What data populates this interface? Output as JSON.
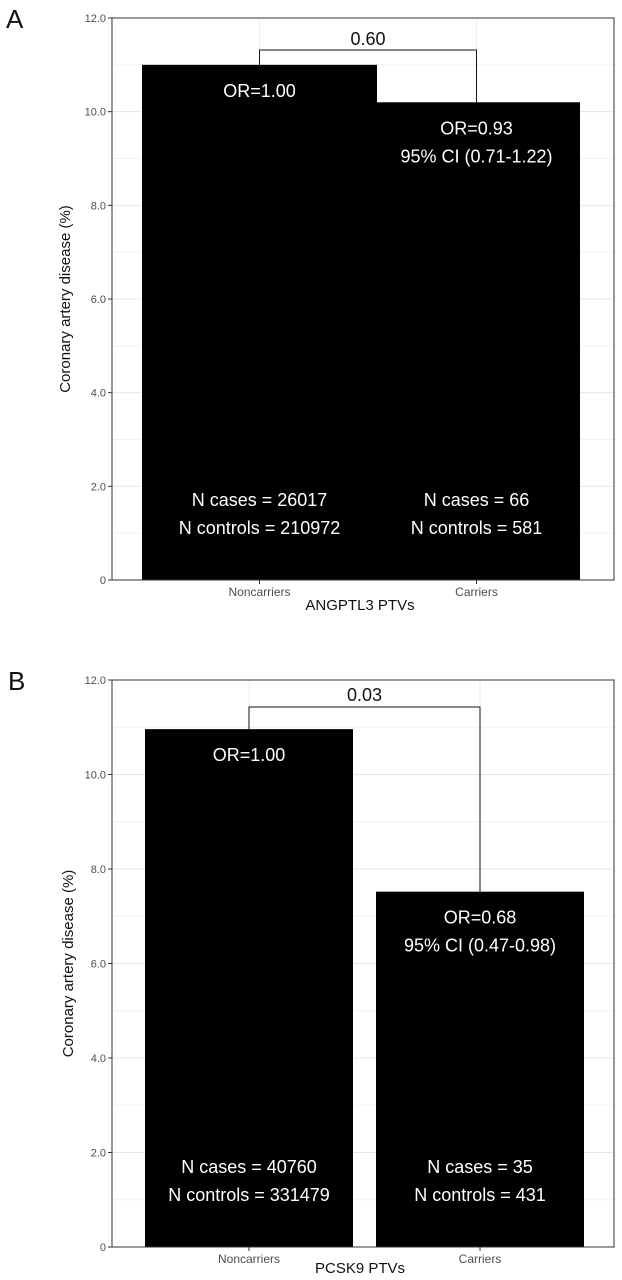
{
  "chart_data": [
    {
      "panel": "A",
      "type": "bar",
      "xlabel": "ANGPTL3 PTVs",
      "ylabel": "Coronary artery disease (%)",
      "ylim": [
        0,
        12
      ],
      "yticks": [
        "0",
        "2.0",
        "4.0",
        "6.0",
        "8.0",
        "10.0",
        "12.0"
      ],
      "grid": true,
      "bar_color": "#000000",
      "categories": [
        "Noncarriers",
        "Carriers"
      ],
      "values": [
        11.0,
        10.2
      ],
      "bar_labels_top": [
        [
          "OR=1.00"
        ],
        [
          "OR=0.93",
          "95% CI (0.71-1.22)"
        ]
      ],
      "bar_labels_bottom": [
        [
          "N cases = 26017",
          "N controls = 210972"
        ],
        [
          "N cases = 66",
          "N controls = 581"
        ]
      ],
      "p_value": "0.60"
    },
    {
      "panel": "B",
      "type": "bar",
      "xlabel": "PCSK9 PTVs",
      "ylabel": "Coronary artery disease (%)",
      "ylim": [
        0,
        12
      ],
      "yticks": [
        "0",
        "2.0",
        "4.0",
        "6.0",
        "8.0",
        "10.0",
        "12.0"
      ],
      "grid": true,
      "bar_color": "#000000",
      "categories": [
        "Noncarriers",
        "Carriers"
      ],
      "values": [
        10.96,
        7.52
      ],
      "bar_labels_top": [
        [
          "OR=1.00"
        ],
        [
          "OR=0.68",
          "95% CI (0.47-0.98)"
        ]
      ],
      "bar_labels_bottom": [
        [
          "N cases = 40760",
          "N controls = 331479"
        ],
        [
          "N cases = 35",
          "N controls = 431"
        ]
      ],
      "p_value": "0.03"
    }
  ]
}
